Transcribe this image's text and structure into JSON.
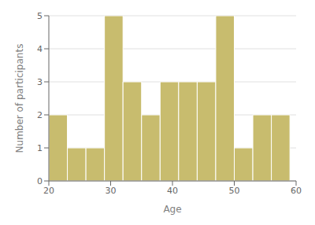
{
  "chart_data": {
    "type": "histogram",
    "bins": [
      20,
      23,
      26,
      29,
      32,
      35,
      38,
      41,
      44,
      47,
      50,
      53,
      56,
      59
    ],
    "values": [
      2,
      1,
      1,
      5,
      3,
      2,
      3,
      3,
      3,
      5,
      1,
      2,
      2
    ],
    "color": "#c8bc6e",
    "xlabel": "Age",
    "ylabel": "Number of participants",
    "xlim": [
      20,
      60
    ],
    "ylim": [
      0,
      5
    ],
    "xticks": [
      20,
      30,
      40,
      50,
      60
    ],
    "yticks": [
      0,
      1,
      2,
      3,
      4,
      5
    ],
    "grid": true
  }
}
